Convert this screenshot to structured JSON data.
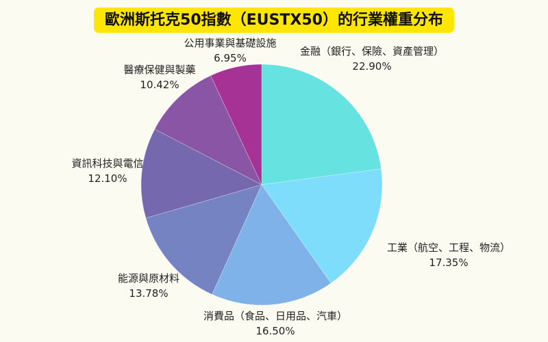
{
  "title": "歐洲斯托克50指數（EUSTX50）的行業權重分布",
  "colors": {
    "background": "#FBFBF2",
    "title_highlight": "#FFE600",
    "title_text": "#111111",
    "label_text": "#1F1F1F"
  },
  "chart_data": {
    "type": "pie",
    "title": "歐洲斯托克50指數（EUSTX50）的行業權重分布",
    "start_angle": "12 o'clock",
    "direction": "clockwise",
    "legend_position": "labels around pie",
    "segments": [
      {
        "label": "金融（銀行、保險、資產管理）",
        "value": 22.9,
        "pct": "22.90%",
        "color": "#66E2E1"
      },
      {
        "label": "工業（航空、工程、物流）",
        "value": 17.35,
        "pct": "17.35%",
        "color": "#7EDDFB"
      },
      {
        "label": "消費品（食品、日用品、汽車）",
        "value": 16.5,
        "pct": "16.50%",
        "color": "#7FB2E8"
      },
      {
        "label": "能源與原材料",
        "value": 13.78,
        "pct": "13.78%",
        "color": "#7583C2"
      },
      {
        "label": "資訊科技與電信",
        "value": 12.1,
        "pct": "12.10%",
        "color": "#7568AE"
      },
      {
        "label": "醫療保健與製藥",
        "value": 10.42,
        "pct": "10.42%",
        "color": "#8B55A5"
      },
      {
        "label": "公用事業與基礎設施",
        "value": 6.95,
        "pct": "6.95%",
        "color": "#A73295"
      }
    ]
  }
}
